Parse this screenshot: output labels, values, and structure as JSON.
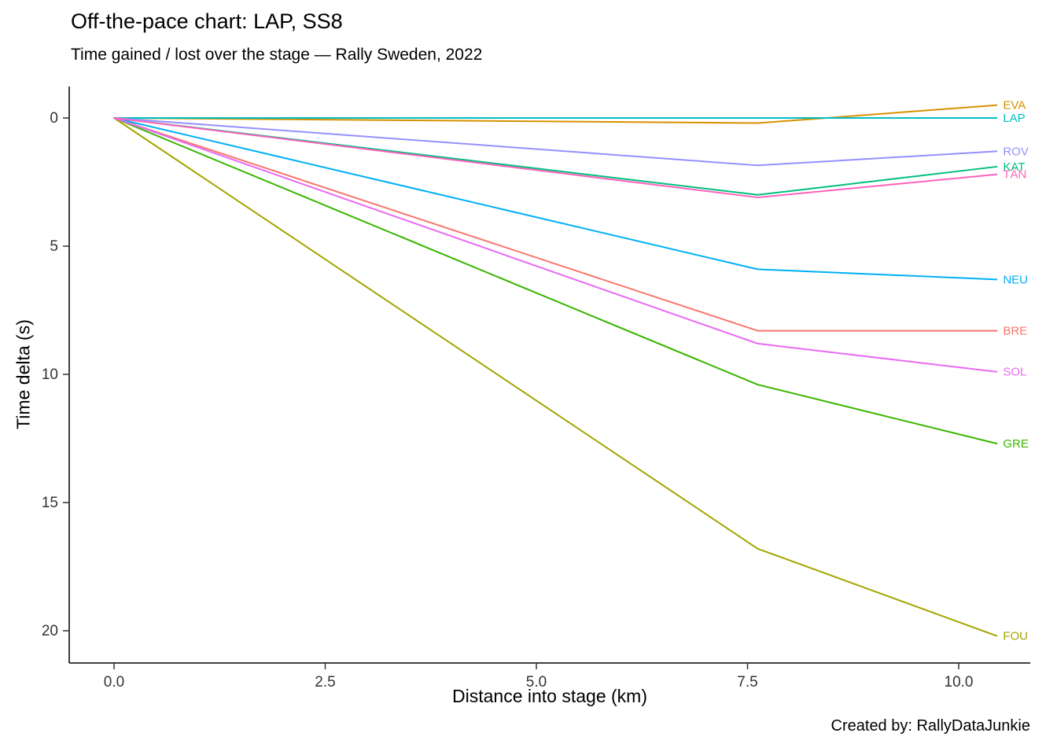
{
  "title": "Off-the-pace chart: LAP, SS8",
  "subtitle": "Time gained / lost over the stage — Rally Sweden, 2022",
  "caption": "Created by: RallyDataJunkie",
  "chart_data": {
    "type": "line",
    "title": "Off-the-pace chart: LAP, SS8",
    "subtitle": "Time gained / lost over the stage — Rally Sweden, 2022",
    "xlabel": "Distance into stage (km)",
    "ylabel": "Time delta (s)",
    "x": [
      0,
      7.62,
      10.45
    ],
    "x_ticks": [
      0,
      2.5,
      5,
      7.5,
      10
    ],
    "x_tick_labels": [
      "0.0",
      "2.5",
      "5.0",
      "7.5",
      "10.0"
    ],
    "y_ticks": [
      0,
      5,
      10,
      15,
      20
    ],
    "y_tick_labels": [
      "0",
      "5",
      "10",
      "15",
      "20"
    ],
    "xlim": [
      -0.53,
      10.85
    ],
    "ylim": [
      -1.23,
      21.26
    ],
    "y_axis_inverted": true,
    "grid": false,
    "legend_position": "right-end-labels",
    "reference_driver": "LAP",
    "series": [
      {
        "name": "BRE",
        "color": "#F8766D",
        "values": [
          0,
          8.3,
          8.3
        ]
      },
      {
        "name": "EVA",
        "color": "#D89000",
        "values": [
          0,
          0.2,
          -0.5
        ]
      },
      {
        "name": "FOU",
        "color": "#A3A500",
        "values": [
          0,
          16.8,
          20.2
        ]
      },
      {
        "name": "GRE",
        "color": "#39B600",
        "values": [
          0,
          10.4,
          12.7
        ]
      },
      {
        "name": "KAT",
        "color": "#00BF7D",
        "values": [
          0,
          3.0,
          1.9
        ]
      },
      {
        "name": "LAP",
        "color": "#00BFC4",
        "values": [
          0,
          0,
          0
        ]
      },
      {
        "name": "NEU",
        "color": "#00B0F6",
        "values": [
          0,
          5.9,
          6.3
        ]
      },
      {
        "name": "ROV",
        "color": "#9590FF",
        "values": [
          0,
          1.85,
          1.3
        ]
      },
      {
        "name": "SOL",
        "color": "#E76BF3",
        "values": [
          0,
          8.8,
          9.9
        ]
      },
      {
        "name": "TÄN",
        "color": "#FF62BC",
        "values": [
          0,
          3.1,
          2.2
        ]
      }
    ]
  }
}
